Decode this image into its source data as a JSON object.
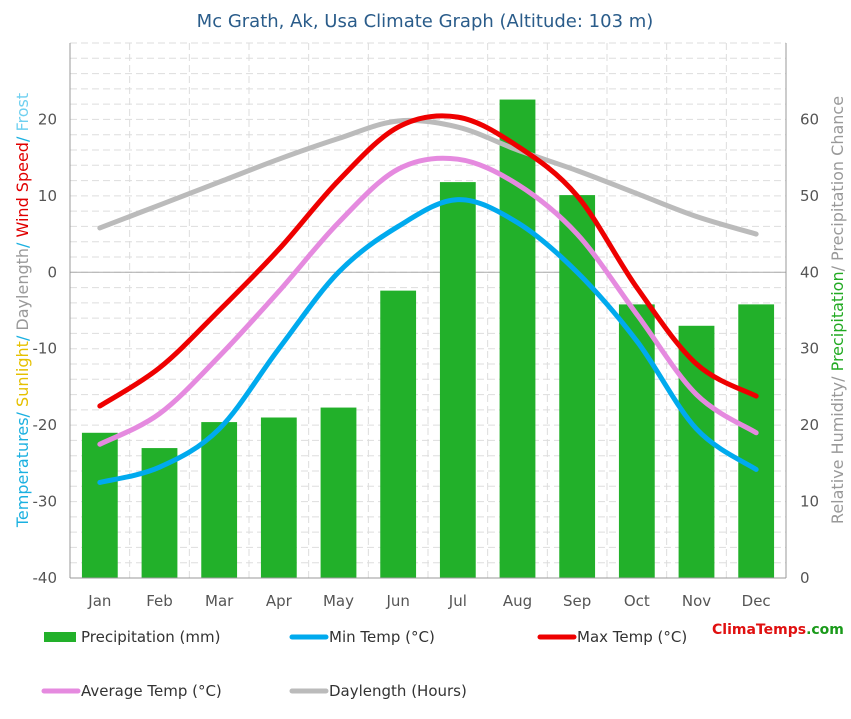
{
  "chart_data": {
    "type": "bar",
    "title": "Mc Grath, Ak, Usa Climate Graph (Altitude: 103 m)",
    "categories": [
      "Jan",
      "Feb",
      "Mar",
      "Apr",
      "May",
      "Jun",
      "Jul",
      "Aug",
      "Sep",
      "Oct",
      "Nov",
      "Dec"
    ],
    "left_axis": {
      "ylim": [
        -40,
        30
      ],
      "ticks": [
        "-40",
        "-30",
        "-20",
        "-10",
        "0",
        "10",
        "20"
      ],
      "title_parts": [
        {
          "text": "Temperatures",
          "color": "#1ab0e0"
        },
        {
          "text": "/ ",
          "color": "#1ab0e0"
        },
        {
          "text": "Sunlight",
          "color": "#e5c000"
        },
        {
          "text": "/ ",
          "color": "#1ab0e0"
        },
        {
          "text": "Daylength",
          "color": "#999999"
        },
        {
          "text": "/ ",
          "color": "#1ab0e0"
        },
        {
          "text": "Wind Speed",
          "color": "#e00000"
        },
        {
          "text": "/ ",
          "color": "#1ab0e0"
        },
        {
          "text": "Frost",
          "color": "#6fd0f0"
        }
      ]
    },
    "right_axis": {
      "ylim": [
        0,
        70
      ],
      "ticks": [
        "0",
        "10",
        "20",
        "30",
        "40",
        "50",
        "60"
      ],
      "title_parts": [
        {
          "text": "Relative Humidity",
          "color": "#999999"
        },
        {
          "text": "/ ",
          "color": "#999999"
        },
        {
          "text": "Precipitation",
          "color": "#22aa22"
        },
        {
          "text": "/ ",
          "color": "#999999"
        },
        {
          "text": "Precipitation Chance",
          "color": "#999999"
        }
      ]
    },
    "series": [
      {
        "name": "Precipitation (mm)",
        "kind": "bar",
        "axis": "right",
        "color": "#22b02a",
        "values": [
          19,
          17,
          20.4,
          21,
          22.3,
          37.6,
          51.8,
          62.6,
          50.1,
          35.8,
          33,
          35.8
        ]
      },
      {
        "name": "Min Temp (°C)",
        "kind": "line",
        "axis": "left",
        "color": "#00aaee",
        "values": [
          -27.5,
          -25.5,
          -20.5,
          -10,
          0,
          6,
          9.5,
          6.5,
          0,
          -9,
          -20.5,
          -25.8
        ]
      },
      {
        "name": "Max Temp (°C)",
        "kind": "line",
        "axis": "left",
        "color": "#ee0000",
        "values": [
          -17.5,
          -12.5,
          -5,
          3,
          12,
          19,
          20.3,
          16.5,
          10,
          -2,
          -12,
          -16.2
        ]
      },
      {
        "name": "Average Temp (°C)",
        "kind": "line",
        "axis": "left",
        "color": "#e58adf",
        "values": [
          -22.5,
          -18.5,
          -11,
          -2.5,
          6.5,
          13.5,
          14.8,
          11.5,
          5,
          -5.5,
          -16,
          -21
        ]
      },
      {
        "name": "Daylength (Hours)",
        "kind": "line",
        "axis": "left",
        "color": "#bbbbbb",
        "values": [
          5.8,
          8.8,
          11.8,
          14.8,
          17.5,
          19.8,
          19,
          16,
          13.3,
          10.3,
          7.3,
          5
        ]
      }
    ],
    "legend": [
      {
        "label": "Precipitation (mm)",
        "color": "#22b02a",
        "shape": "bar"
      },
      {
        "label": "Min Temp (°C)",
        "color": "#00aaee",
        "shape": "line"
      },
      {
        "label": "Max Temp (°C)",
        "color": "#ee0000",
        "shape": "line"
      },
      {
        "label": "Average Temp (°C)",
        "color": "#e58adf",
        "shape": "line"
      },
      {
        "label": "Daylength (Hours)",
        "color": "#bbbbbb",
        "shape": "line"
      }
    ]
  },
  "brand": {
    "text": "ClimaTemps.com",
    "parts": [
      {
        "text": "Clima",
        "color": "#e01010"
      },
      {
        "text": "Temps",
        "color": "#e01010"
      },
      {
        "text": ".com",
        "color": "#1a9a1a"
      }
    ]
  }
}
